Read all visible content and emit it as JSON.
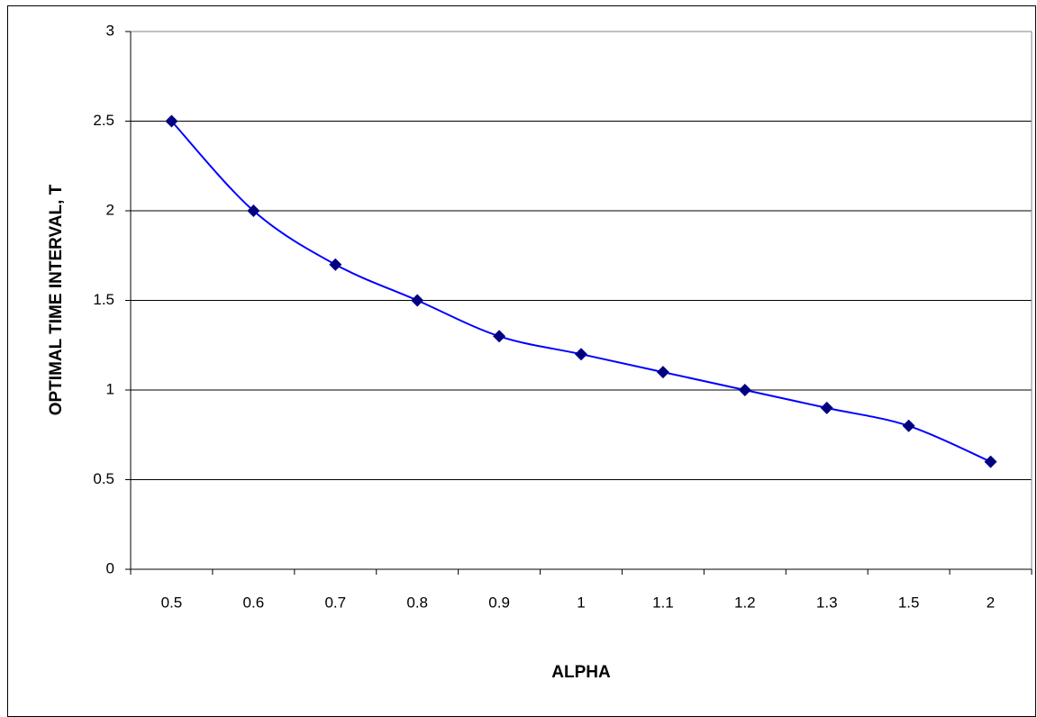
{
  "chart_data": {
    "type": "line",
    "x_label": "ALPHA",
    "y_label": "OPTIMAL  TIME INTERVAL, T",
    "categories": [
      "0.5",
      "0.6",
      "0.7",
      "0.8",
      "0.9",
      "1",
      "1.1",
      "1.2",
      "1.3",
      "1.5",
      "2"
    ],
    "series": [
      {
        "color": "#0000ff",
        "marker_color": "#000080",
        "values": [
          2.5,
          2,
          1.7,
          1.5,
          1.3,
          1.2,
          1.1,
          1,
          0.9,
          0.8,
          0.6
        ]
      }
    ],
    "ylim": [
      0,
      3
    ],
    "yticks": [
      0,
      0.5,
      1,
      1.5,
      2,
      2.5,
      3
    ],
    "grid": true,
    "smooth": true
  }
}
